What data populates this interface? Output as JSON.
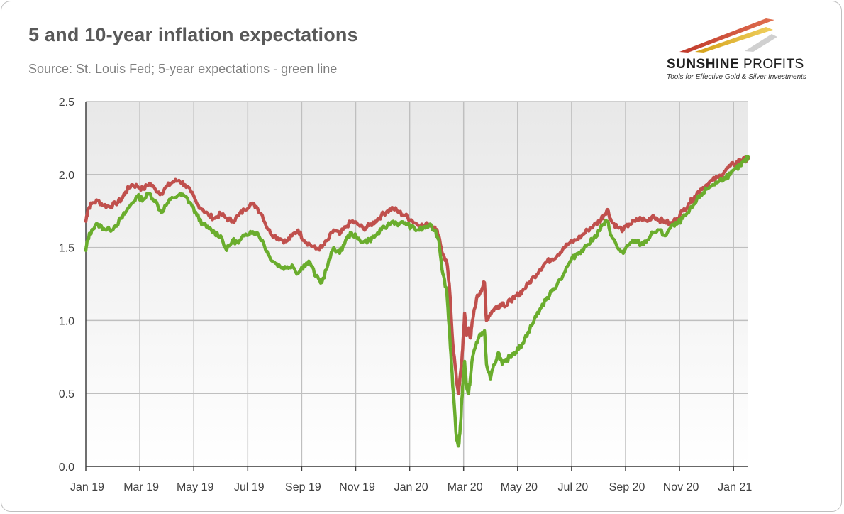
{
  "title": "5 and 10-year inflation expectations",
  "subtitle": "Source: St. Louis Fed; 5-year expectations - green line",
  "logo": {
    "name_bold": "SUNSHINE",
    "name_rest": " PROFITS",
    "tagline": "Tools for Effective Gold & Silver Investments"
  },
  "colors": {
    "series_10y": "#c0504d",
    "series_5y": "#6aad2d",
    "grid": "#bfbfbf",
    "plot_bg_top": "#e8e8e8",
    "plot_bg_bottom": "#ffffff"
  },
  "chart_data": {
    "type": "line",
    "xlabel": "",
    "ylabel": "",
    "ylim": [
      0,
      2.5
    ],
    "yticks": [
      "0.0",
      "0.5",
      "1.0",
      "1.5",
      "2.0",
      "2.5"
    ],
    "xticks": [
      "Jan 19",
      "Mar 19",
      "May 19",
      "Jul 19",
      "Sep 19",
      "Nov 19",
      "Jan 20",
      "Mar 20",
      "May 20",
      "Jul 20",
      "Sep 20",
      "Nov 20",
      "Jan 21"
    ],
    "xlim_months": [
      0,
      24.75
    ],
    "grid": true,
    "legend": "none",
    "series": [
      {
        "key": "10y",
        "color": "#c0504d",
        "points": [
          [
            0,
            1.68
          ],
          [
            0.1,
            1.76
          ],
          [
            0.3,
            1.8
          ],
          [
            0.6,
            1.82
          ],
          [
            0.9,
            1.79
          ],
          [
            1.2,
            1.78
          ],
          [
            1.5,
            1.8
          ],
          [
            1.8,
            1.83
          ],
          [
            2.0,
            1.88
          ],
          [
            2.3,
            1.93
          ],
          [
            2.6,
            1.92
          ],
          [
            2.9,
            1.9
          ],
          [
            3.2,
            1.94
          ],
          [
            3.5,
            1.9
          ],
          [
            3.8,
            1.87
          ],
          [
            4.1,
            1.92
          ],
          [
            4.4,
            1.95
          ],
          [
            4.7,
            1.96
          ],
          [
            5.0,
            1.93
          ],
          [
            5.3,
            1.88
          ],
          [
            5.6,
            1.8
          ],
          [
            5.9,
            1.76
          ],
          [
            6.2,
            1.72
          ],
          [
            6.5,
            1.7
          ],
          [
            6.8,
            1.73
          ],
          [
            7.1,
            1.7
          ],
          [
            7.4,
            1.68
          ],
          [
            7.7,
            1.72
          ],
          [
            8.0,
            1.76
          ],
          [
            8.3,
            1.8
          ],
          [
            8.6,
            1.78
          ],
          [
            8.9,
            1.72
          ],
          [
            9.2,
            1.62
          ],
          [
            9.5,
            1.58
          ],
          [
            9.8,
            1.56
          ],
          [
            10.1,
            1.54
          ],
          [
            10.4,
            1.58
          ],
          [
            10.7,
            1.62
          ],
          [
            11.0,
            1.55
          ],
          [
            11.3,
            1.52
          ],
          [
            11.6,
            1.49
          ],
          [
            11.9,
            1.5
          ],
          [
            12.2,
            1.55
          ],
          [
            12.5,
            1.62
          ],
          [
            12.8,
            1.59
          ],
          [
            13.1,
            1.64
          ],
          [
            13.4,
            1.68
          ],
          [
            13.7,
            1.66
          ],
          [
            14.0,
            1.63
          ],
          [
            14.3,
            1.65
          ],
          [
            14.6,
            1.68
          ],
          [
            14.9,
            1.72
          ],
          [
            15.2,
            1.75
          ],
          [
            15.5,
            1.77
          ],
          [
            15.8,
            1.74
          ],
          [
            16.1,
            1.72
          ],
          [
            16.4,
            1.69
          ],
          [
            16.7,
            1.66
          ],
          [
            17.0,
            1.65
          ],
          [
            17.3,
            1.66
          ],
          [
            17.6,
            1.64
          ],
          [
            17.8,
            1.58
          ],
          [
            18.0,
            1.45
          ],
          [
            18.2,
            1.4
          ],
          [
            18.35,
            1.2
          ],
          [
            18.5,
            0.85
          ],
          [
            18.7,
            0.58
          ],
          [
            18.8,
            0.5
          ],
          [
            18.9,
            0.65
          ],
          [
            19.0,
            0.8
          ],
          [
            19.1,
            1.05
          ],
          [
            19.2,
            0.9
          ],
          [
            19.3,
            0.95
          ],
          [
            19.4,
            0.88
          ],
          [
            19.5,
            1.0
          ],
          [
            19.7,
            1.15
          ],
          [
            19.9,
            1.2
          ],
          [
            20.1,
            1.26
          ],
          [
            20.2,
            1.0
          ],
          [
            20.4,
            1.05
          ],
          [
            20.6,
            1.08
          ],
          [
            20.8,
            1.1
          ],
          [
            21.0,
            1.12
          ],
          [
            21.2,
            1.1
          ],
          [
            21.4,
            1.14
          ],
          [
            21.6,
            1.15
          ],
          [
            21.8,
            1.18
          ],
          [
            22.0,
            1.2
          ],
          [
            22.3,
            1.25
          ],
          [
            22.6,
            1.3
          ],
          [
            22.9,
            1.35
          ],
          [
            23.2,
            1.4
          ],
          [
            23.5,
            1.42
          ],
          [
            23.8,
            1.45
          ],
          [
            24.1,
            1.5
          ],
          [
            24.4,
            1.53
          ],
          [
            24.7,
            1.55
          ],
          [
            25.0,
            1.58
          ],
          [
            25.3,
            1.62
          ],
          [
            25.6,
            1.65
          ],
          [
            25.9,
            1.68
          ],
          [
            26.1,
            1.72
          ],
          [
            26.3,
            1.76
          ],
          [
            26.5,
            1.68
          ],
          [
            26.8,
            1.64
          ],
          [
            27.1,
            1.62
          ],
          [
            27.4,
            1.66
          ],
          [
            27.7,
            1.68
          ],
          [
            28.0,
            1.7
          ],
          [
            28.3,
            1.68
          ],
          [
            28.6,
            1.72
          ],
          [
            28.9,
            1.69
          ],
          [
            29.2,
            1.68
          ],
          [
            29.5,
            1.66
          ],
          [
            29.8,
            1.7
          ],
          [
            30.1,
            1.75
          ],
          [
            30.4,
            1.8
          ],
          [
            30.7,
            1.85
          ],
          [
            31.0,
            1.9
          ],
          [
            31.3,
            1.93
          ],
          [
            31.6,
            1.96
          ],
          [
            31.9,
            1.98
          ],
          [
            32.2,
            2.02
          ],
          [
            32.5,
            2.06
          ],
          [
            32.8,
            2.08
          ],
          [
            33.0,
            2.1
          ],
          [
            33.2,
            2.1
          ],
          [
            33.4,
            2.11
          ]
        ]
      },
      {
        "key": "5y",
        "color": "#6aad2d",
        "points": [
          [
            0,
            1.48
          ],
          [
            0.1,
            1.56
          ],
          [
            0.3,
            1.62
          ],
          [
            0.6,
            1.66
          ],
          [
            0.9,
            1.63
          ],
          [
            1.2,
            1.62
          ],
          [
            1.5,
            1.65
          ],
          [
            1.8,
            1.7
          ],
          [
            2.0,
            1.74
          ],
          [
            2.3,
            1.8
          ],
          [
            2.6,
            1.85
          ],
          [
            2.9,
            1.83
          ],
          [
            3.2,
            1.87
          ],
          [
            3.5,
            1.82
          ],
          [
            3.8,
            1.74
          ],
          [
            4.1,
            1.8
          ],
          [
            4.4,
            1.84
          ],
          [
            4.7,
            1.86
          ],
          [
            5.0,
            1.85
          ],
          [
            5.3,
            1.8
          ],
          [
            5.6,
            1.72
          ],
          [
            5.9,
            1.66
          ],
          [
            6.2,
            1.63
          ],
          [
            6.5,
            1.6
          ],
          [
            6.8,
            1.58
          ],
          [
            7.1,
            1.48
          ],
          [
            7.4,
            1.55
          ],
          [
            7.7,
            1.53
          ],
          [
            8.0,
            1.58
          ],
          [
            8.3,
            1.61
          ],
          [
            8.6,
            1.6
          ],
          [
            8.9,
            1.55
          ],
          [
            9.2,
            1.45
          ],
          [
            9.5,
            1.4
          ],
          [
            9.8,
            1.37
          ],
          [
            10.1,
            1.36
          ],
          [
            10.4,
            1.38
          ],
          [
            10.7,
            1.32
          ],
          [
            11.0,
            1.38
          ],
          [
            11.3,
            1.4
          ],
          [
            11.6,
            1.3
          ],
          [
            11.9,
            1.26
          ],
          [
            12.2,
            1.38
          ],
          [
            12.5,
            1.5
          ],
          [
            12.8,
            1.46
          ],
          [
            13.1,
            1.55
          ],
          [
            13.4,
            1.6
          ],
          [
            13.7,
            1.56
          ],
          [
            14.0,
            1.54
          ],
          [
            14.3,
            1.55
          ],
          [
            14.6,
            1.58
          ],
          [
            14.9,
            1.62
          ],
          [
            15.2,
            1.65
          ],
          [
            15.5,
            1.68
          ],
          [
            15.8,
            1.66
          ],
          [
            16.1,
            1.67
          ],
          [
            16.4,
            1.64
          ],
          [
            16.7,
            1.62
          ],
          [
            17.0,
            1.63
          ],
          [
            17.3,
            1.65
          ],
          [
            17.6,
            1.62
          ],
          [
            17.8,
            1.55
          ],
          [
            18.0,
            1.32
          ],
          [
            18.2,
            1.2
          ],
          [
            18.35,
            0.9
          ],
          [
            18.5,
            0.55
          ],
          [
            18.7,
            0.18
          ],
          [
            18.8,
            0.14
          ],
          [
            18.9,
            0.3
          ],
          [
            19.0,
            0.55
          ],
          [
            19.1,
            0.72
          ],
          [
            19.2,
            0.55
          ],
          [
            19.3,
            0.5
          ],
          [
            19.4,
            0.62
          ],
          [
            19.5,
            0.75
          ],
          [
            19.7,
            0.85
          ],
          [
            19.9,
            0.9
          ],
          [
            20.1,
            0.93
          ],
          [
            20.2,
            0.7
          ],
          [
            20.4,
            0.6
          ],
          [
            20.6,
            0.7
          ],
          [
            20.8,
            0.78
          ],
          [
            21.0,
            0.7
          ],
          [
            21.2,
            0.72
          ],
          [
            21.4,
            0.76
          ],
          [
            21.6,
            0.78
          ],
          [
            21.8,
            0.8
          ],
          [
            22.0,
            0.84
          ],
          [
            22.3,
            0.92
          ],
          [
            22.6,
            1.0
          ],
          [
            22.9,
            1.08
          ],
          [
            23.2,
            1.14
          ],
          [
            23.5,
            1.2
          ],
          [
            23.8,
            1.26
          ],
          [
            24.1,
            1.32
          ],
          [
            24.4,
            1.4
          ],
          [
            24.7,
            1.45
          ],
          [
            25.0,
            1.48
          ],
          [
            25.3,
            1.52
          ],
          [
            25.6,
            1.56
          ],
          [
            25.9,
            1.62
          ],
          [
            26.1,
            1.66
          ],
          [
            26.3,
            1.68
          ],
          [
            26.5,
            1.58
          ],
          [
            26.8,
            1.5
          ],
          [
            27.1,
            1.46
          ],
          [
            27.4,
            1.52
          ],
          [
            27.7,
            1.55
          ],
          [
            28.0,
            1.52
          ],
          [
            28.3,
            1.55
          ],
          [
            28.6,
            1.6
          ],
          [
            28.9,
            1.62
          ],
          [
            29.2,
            1.58
          ],
          [
            29.5,
            1.64
          ],
          [
            29.8,
            1.66
          ],
          [
            30.1,
            1.7
          ],
          [
            30.4,
            1.74
          ],
          [
            30.7,
            1.8
          ],
          [
            31.0,
            1.86
          ],
          [
            31.3,
            1.9
          ],
          [
            31.6,
            1.93
          ],
          [
            31.9,
            1.95
          ],
          [
            32.2,
            1.98
          ],
          [
            32.5,
            2.0
          ],
          [
            32.8,
            2.04
          ],
          [
            33.0,
            2.06
          ],
          [
            33.2,
            2.09
          ],
          [
            33.4,
            2.12
          ]
        ]
      }
    ]
  }
}
